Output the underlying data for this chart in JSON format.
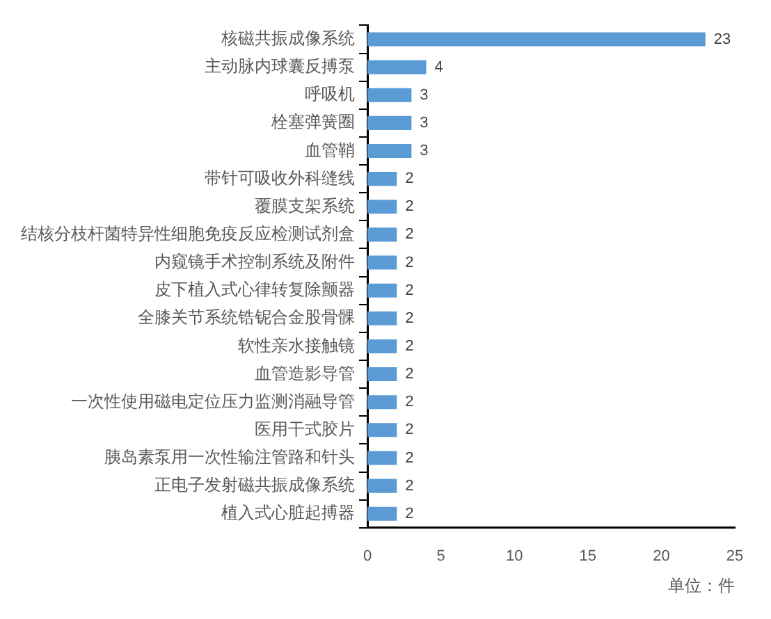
{
  "chart_data": {
    "type": "bar",
    "orientation": "horizontal",
    "categories": [
      "核磁共振成像系统",
      "主动脉内球囊反搏泵",
      "呼吸机",
      "栓塞弹簧圈",
      "血管鞘",
      "带针可吸收外科缝线",
      "覆膜支架系统",
      "结核分枝杆菌特异性细胞免疫反应检测试剂盒",
      "内窥镜手术控制系统及附件",
      "皮下植入式心律转复除颤器",
      "全膝关节系统锆铌合金股骨髁",
      "软性亲水接触镜",
      "血管造影导管",
      "一次性使用磁电定位压力监测消融导管",
      "医用干式胶片",
      "胰岛素泵用一次性输注管路和针头",
      "正电子发射磁共振成像系统",
      "植入式心脏起搏器"
    ],
    "values": [
      23,
      4,
      3,
      3,
      3,
      2,
      2,
      2,
      2,
      2,
      2,
      2,
      2,
      2,
      2,
      2,
      2,
      2
    ],
    "color": "#5b9bd5",
    "xlim": [
      0,
      25
    ],
    "xticks": [
      0,
      5,
      10,
      15,
      20,
      25
    ],
    "xlabel": "单位：件",
    "data_labels": true,
    "grid": false,
    "legend": false
  }
}
